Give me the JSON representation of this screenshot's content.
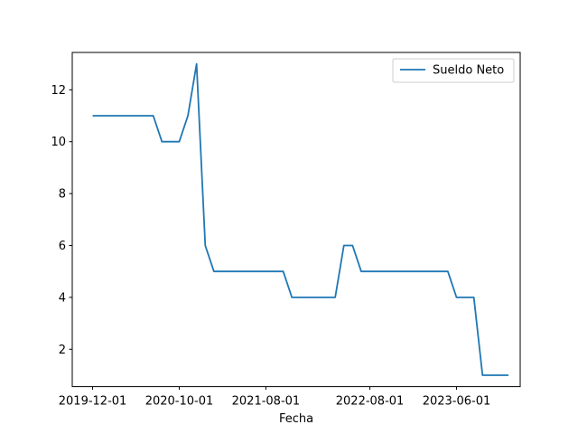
{
  "chart_data": {
    "type": "line",
    "title": "",
    "xlabel": "Fecha",
    "ylabel": "",
    "ylim": [
      0.56,
      13.44
    ],
    "xlim_month_index": [
      -2.35,
      49.35
    ],
    "yticks": [
      2,
      4,
      6,
      8,
      10,
      12
    ],
    "xticks": [
      {
        "label": "2019-12-01",
        "month_index": 0
      },
      {
        "label": "2020-10-01",
        "month_index": 10
      },
      {
        "label": "2021-08-01",
        "month_index": 20
      },
      {
        "label": "2022-08-01",
        "month_index": 32
      },
      {
        "label": "2023-06-01",
        "month_index": 42
      }
    ],
    "grid": false,
    "legend": {
      "position": "top-right",
      "entries": [
        "Sueldo Neto"
      ]
    },
    "series": [
      {
        "name": "Sueldo Neto",
        "color": "#1f77b4",
        "dates": [
          "2019-12-01",
          "2020-01-01",
          "2020-02-01",
          "2020-03-01",
          "2020-04-01",
          "2020-05-01",
          "2020-06-01",
          "2020-07-01",
          "2020-08-01",
          "2020-09-01",
          "2020-10-01",
          "2020-11-01",
          "2020-12-01",
          "2021-01-01",
          "2021-02-01",
          "2021-03-01",
          "2021-04-01",
          "2021-05-01",
          "2021-06-01",
          "2021-07-01",
          "2021-08-01",
          "2021-09-01",
          "2021-10-01",
          "2021-11-01",
          "2021-12-01",
          "2022-01-01",
          "2022-02-01",
          "2022-03-01",
          "2022-04-01",
          "2022-05-01",
          "2022-06-01",
          "2022-07-01",
          "2022-08-01",
          "2022-09-01",
          "2022-10-01",
          "2022-11-01",
          "2022-12-01",
          "2023-01-01",
          "2023-02-01",
          "2023-03-01",
          "2023-04-01",
          "2023-05-01",
          "2023-06-01",
          "2023-07-01",
          "2023-08-01",
          "2023-09-01",
          "2023-10-01",
          "2023-11-01",
          "2023-12-01"
        ],
        "values": [
          11,
          11,
          11,
          11,
          11,
          11,
          11,
          11,
          10,
          10,
          10,
          11,
          13,
          6,
          5,
          5,
          5,
          5,
          5,
          5,
          5,
          5,
          5,
          4,
          4,
          4,
          4,
          4,
          4,
          6,
          6,
          5,
          5,
          5,
          5,
          5,
          5,
          5,
          5,
          5,
          5,
          5,
          4,
          4,
          4,
          1,
          1,
          1,
          1
        ]
      }
    ]
  }
}
